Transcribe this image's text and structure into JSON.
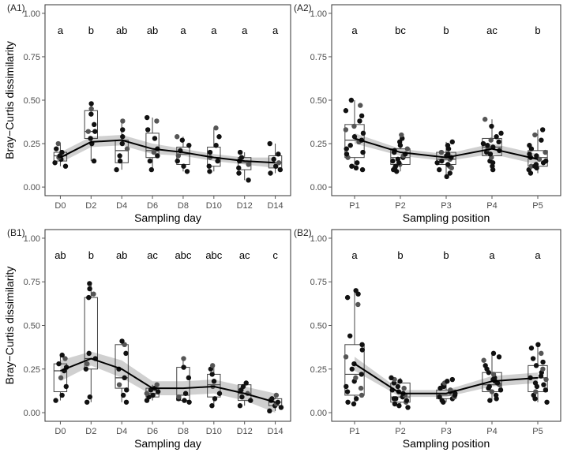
{
  "figure": {
    "ylabel": "Bray−Curtis dissimilarity",
    "colors": {
      "panel_border": "#333333",
      "box": "#444444",
      "point": "#111111",
      "point_alt": "#555555",
      "ribbon": "#c8c8c8",
      "line": "#000000",
      "text": "#222222",
      "tick": "#555555"
    }
  },
  "chart_data": [
    {
      "id": "A1",
      "panel_label": "(A1)",
      "type": "box+scatter+smooth",
      "xlabel": "Sampling day",
      "ylabel": "Bray−Curtis dissimilarity",
      "ylim": [
        0,
        1
      ],
      "yticks": [
        "0.00",
        "0.25",
        "0.50",
        "0.75",
        "1.00"
      ],
      "categories": [
        "D0",
        "D2",
        "D4",
        "D6",
        "D8",
        "D10",
        "D12",
        "D14"
      ],
      "letters": [
        "a",
        "b",
        "ab",
        "ab",
        "a",
        "a",
        "a",
        "a"
      ],
      "boxes": [
        {
          "q1": 0.15,
          "median": 0.18,
          "q3": 0.2,
          "lo": 0.12,
          "hi": 0.25
        },
        {
          "q1": 0.28,
          "median": 0.32,
          "q3": 0.44,
          "lo": 0.15,
          "hi": 0.48
        },
        {
          "q1": 0.14,
          "median": 0.21,
          "q3": 0.27,
          "lo": 0.1,
          "hi": 0.38
        },
        {
          "q1": 0.17,
          "median": 0.21,
          "q3": 0.31,
          "lo": 0.1,
          "hi": 0.4
        },
        {
          "q1": 0.13,
          "median": 0.19,
          "q3": 0.23,
          "lo": 0.09,
          "hi": 0.29
        },
        {
          "q1": 0.12,
          "median": 0.17,
          "q3": 0.23,
          "lo": 0.09,
          "hi": 0.34
        },
        {
          "q1": 0.1,
          "median": 0.14,
          "q3": 0.17,
          "lo": 0.04,
          "hi": 0.2
        },
        {
          "q1": 0.11,
          "median": 0.14,
          "q3": 0.18,
          "lo": 0.08,
          "hi": 0.25
        }
      ],
      "points": [
        [
          0.12,
          0.14,
          0.16,
          0.17,
          0.18,
          0.2,
          0.22,
          0.25
        ],
        [
          0.15,
          0.25,
          0.28,
          0.32,
          0.32,
          0.36,
          0.42,
          0.45,
          0.48
        ],
        [
          0.1,
          0.15,
          0.18,
          0.22,
          0.25,
          0.29,
          0.33,
          0.38
        ],
        [
          0.1,
          0.15,
          0.18,
          0.2,
          0.22,
          0.28,
          0.33,
          0.38,
          0.4
        ],
        [
          0.09,
          0.12,
          0.15,
          0.18,
          0.21,
          0.24,
          0.27,
          0.29
        ],
        [
          0.09,
          0.12,
          0.15,
          0.17,
          0.2,
          0.24,
          0.29,
          0.34
        ],
        [
          0.04,
          0.08,
          0.11,
          0.13,
          0.15,
          0.17,
          0.2
        ],
        [
          0.08,
          0.1,
          0.12,
          0.14,
          0.16,
          0.19,
          0.25
        ]
      ],
      "smooth": {
        "mean": [
          0.17,
          0.26,
          0.27,
          0.22,
          0.2,
          0.17,
          0.15,
          0.14
        ],
        "lower": [
          0.14,
          0.23,
          0.24,
          0.19,
          0.18,
          0.15,
          0.13,
          0.11
        ],
        "upper": [
          0.2,
          0.29,
          0.3,
          0.25,
          0.22,
          0.19,
          0.17,
          0.17
        ]
      }
    },
    {
      "id": "A2",
      "panel_label": "(A2)",
      "type": "box+scatter+smooth",
      "xlabel": "Sampling position",
      "ylabel": "",
      "ylim": [
        0,
        1
      ],
      "yticks": [
        "0.00",
        "0.25",
        "0.50",
        "0.75",
        "1.00"
      ],
      "categories": [
        "P1",
        "P2",
        "P3",
        "P4",
        "P5"
      ],
      "letters": [
        "a",
        "bc",
        "b",
        "ac",
        "b"
      ],
      "boxes": [
        {
          "q1": 0.17,
          "median": 0.27,
          "q3": 0.36,
          "lo": 0.1,
          "hi": 0.5
        },
        {
          "q1": 0.13,
          "median": 0.17,
          "q3": 0.22,
          "lo": 0.09,
          "hi": 0.3
        },
        {
          "q1": 0.13,
          "median": 0.16,
          "q3": 0.2,
          "lo": 0.06,
          "hi": 0.26
        },
        {
          "q1": 0.18,
          "median": 0.23,
          "q3": 0.28,
          "lo": 0.1,
          "hi": 0.39
        },
        {
          "q1": 0.12,
          "median": 0.17,
          "q3": 0.21,
          "lo": 0.08,
          "hi": 0.33
        }
      ],
      "points": [
        [
          0.1,
          0.11,
          0.14,
          0.17,
          0.19,
          0.22,
          0.24,
          0.26,
          0.27,
          0.29,
          0.31,
          0.35,
          0.38,
          0.41,
          0.44,
          0.47,
          0.5,
          0.12,
          0.2,
          0.33
        ],
        [
          0.09,
          0.1,
          0.11,
          0.13,
          0.14,
          0.15,
          0.17,
          0.18,
          0.19,
          0.2,
          0.21,
          0.22,
          0.24,
          0.26,
          0.28,
          0.3,
          0.12,
          0.16
        ],
        [
          0.06,
          0.08,
          0.1,
          0.12,
          0.13,
          0.14,
          0.15,
          0.16,
          0.17,
          0.18,
          0.19,
          0.2,
          0.22,
          0.24,
          0.26,
          0.11
        ],
        [
          0.1,
          0.12,
          0.15,
          0.17,
          0.19,
          0.2,
          0.21,
          0.22,
          0.23,
          0.24,
          0.25,
          0.27,
          0.29,
          0.31,
          0.35,
          0.39,
          0.14,
          0.26
        ],
        [
          0.08,
          0.1,
          0.11,
          0.12,
          0.13,
          0.14,
          0.15,
          0.16,
          0.17,
          0.18,
          0.19,
          0.2,
          0.22,
          0.24,
          0.27,
          0.3,
          0.33,
          0.12
        ]
      ],
      "smooth": {
        "mean": [
          0.28,
          0.2,
          0.17,
          0.22,
          0.16
        ],
        "lower": [
          0.25,
          0.18,
          0.15,
          0.19,
          0.13
        ],
        "upper": [
          0.31,
          0.22,
          0.19,
          0.25,
          0.19
        ]
      }
    },
    {
      "id": "B1",
      "panel_label": "(B1)",
      "type": "box+scatter+smooth",
      "xlabel": "Sampling day",
      "ylabel": "Bray−Curtis dissimilarity",
      "ylim": [
        0,
        1
      ],
      "yticks": [
        "0.00",
        "0.25",
        "0.50",
        "0.75",
        "1.00"
      ],
      "categories": [
        "D0",
        "D2",
        "D4",
        "D6",
        "D8",
        "D10",
        "D12",
        "D14"
      ],
      "letters": [
        "ab",
        "b",
        "ab",
        "ac",
        "abc",
        "abc",
        "ac",
        "c"
      ],
      "boxes": [
        {
          "q1": 0.12,
          "median": 0.24,
          "q3": 0.28,
          "lo": 0.07,
          "hi": 0.33
        },
        {
          "q1": 0.25,
          "median": 0.31,
          "q3": 0.66,
          "lo": 0.06,
          "hi": 0.74
        },
        {
          "q1": 0.14,
          "median": 0.2,
          "q3": 0.39,
          "lo": 0.06,
          "hi": 0.41
        },
        {
          "q1": 0.09,
          "median": 0.11,
          "q3": 0.14,
          "lo": 0.07,
          "hi": 0.16
        },
        {
          "q1": 0.07,
          "median": 0.1,
          "q3": 0.26,
          "lo": 0.06,
          "hi": 0.31
        },
        {
          "q1": 0.09,
          "median": 0.16,
          "q3": 0.22,
          "lo": 0.04,
          "hi": 0.27
        },
        {
          "q1": 0.07,
          "median": 0.11,
          "q3": 0.16,
          "lo": 0.04,
          "hi": 0.17
        },
        {
          "q1": 0.04,
          "median": 0.06,
          "q3": 0.08,
          "lo": 0.01,
          "hi": 0.1
        }
      ],
      "points": [
        [
          0.07,
          0.1,
          0.15,
          0.2,
          0.24,
          0.26,
          0.28,
          0.31,
          0.33
        ],
        [
          0.06,
          0.09,
          0.25,
          0.28,
          0.31,
          0.34,
          0.66,
          0.68,
          0.71,
          0.74
        ],
        [
          0.06,
          0.1,
          0.13,
          0.16,
          0.2,
          0.25,
          0.34,
          0.39,
          0.41
        ],
        [
          0.07,
          0.09,
          0.1,
          0.11,
          0.12,
          0.13,
          0.14,
          0.16
        ],
        [
          0.06,
          0.07,
          0.08,
          0.09,
          0.11,
          0.2,
          0.26,
          0.31
        ],
        [
          0.04,
          0.08,
          0.11,
          0.15,
          0.18,
          0.22,
          0.25,
          0.27
        ],
        [
          0.04,
          0.07,
          0.09,
          0.11,
          0.13,
          0.15,
          0.17
        ],
        [
          0.01,
          0.03,
          0.04,
          0.05,
          0.06,
          0.07,
          0.08,
          0.1
        ]
      ],
      "smooth": {
        "mean": [
          0.24,
          0.31,
          0.25,
          0.14,
          0.14,
          0.15,
          0.11,
          0.06
        ],
        "lower": [
          0.18,
          0.27,
          0.2,
          0.1,
          0.1,
          0.11,
          0.07,
          0.0
        ],
        "upper": [
          0.3,
          0.35,
          0.3,
          0.18,
          0.18,
          0.19,
          0.15,
          0.11
        ]
      }
    },
    {
      "id": "B2",
      "panel_label": "(B2)",
      "type": "box+scatter+smooth",
      "xlabel": "Sampling position",
      "ylabel": "",
      "ylim": [
        0,
        1
      ],
      "yticks": [
        "0.00",
        "0.25",
        "0.50",
        "0.75",
        "1.00"
      ],
      "categories": [
        "P1",
        "P2",
        "P3",
        "P4",
        "P5"
      ],
      "letters": [
        "a",
        "b",
        "b",
        "a",
        "a"
      ],
      "boxes": [
        {
          "q1": 0.1,
          "median": 0.22,
          "q3": 0.39,
          "lo": 0.05,
          "hi": 0.7
        },
        {
          "q1": 0.06,
          "median": 0.09,
          "q3": 0.17,
          "lo": 0.03,
          "hi": 0.2
        },
        {
          "q1": 0.08,
          "median": 0.1,
          "q3": 0.13,
          "lo": 0.06,
          "hi": 0.19
        },
        {
          "q1": 0.12,
          "median": 0.16,
          "q3": 0.23,
          "lo": 0.07,
          "hi": 0.34
        },
        {
          "q1": 0.12,
          "median": 0.2,
          "q3": 0.27,
          "lo": 0.06,
          "hi": 0.39
        }
      ],
      "points": [
        [
          0.05,
          0.06,
          0.08,
          0.1,
          0.12,
          0.15,
          0.18,
          0.2,
          0.22,
          0.25,
          0.28,
          0.32,
          0.36,
          0.39,
          0.44,
          0.62,
          0.66,
          0.68,
          0.7,
          0.14
        ],
        [
          0.03,
          0.04,
          0.05,
          0.06,
          0.07,
          0.08,
          0.09,
          0.1,
          0.11,
          0.12,
          0.13,
          0.14,
          0.15,
          0.17,
          0.18,
          0.19,
          0.2,
          0.08
        ],
        [
          0.06,
          0.07,
          0.08,
          0.09,
          0.1,
          0.11,
          0.12,
          0.13,
          0.14,
          0.15,
          0.16,
          0.17,
          0.18,
          0.19,
          0.09
        ],
        [
          0.07,
          0.08,
          0.1,
          0.12,
          0.13,
          0.14,
          0.15,
          0.16,
          0.17,
          0.18,
          0.2,
          0.22,
          0.23,
          0.25,
          0.27,
          0.3,
          0.32,
          0.34,
          0.19
        ],
        [
          0.06,
          0.08,
          0.1,
          0.12,
          0.13,
          0.15,
          0.17,
          0.19,
          0.2,
          0.21,
          0.23,
          0.25,
          0.27,
          0.29,
          0.31,
          0.34,
          0.37,
          0.39,
          0.16
        ]
      ],
      "smooth": {
        "mean": [
          0.28,
          0.11,
          0.11,
          0.18,
          0.2
        ],
        "lower": [
          0.24,
          0.09,
          0.09,
          0.15,
          0.17
        ],
        "upper": [
          0.32,
          0.13,
          0.13,
          0.21,
          0.23
        ]
      }
    }
  ]
}
